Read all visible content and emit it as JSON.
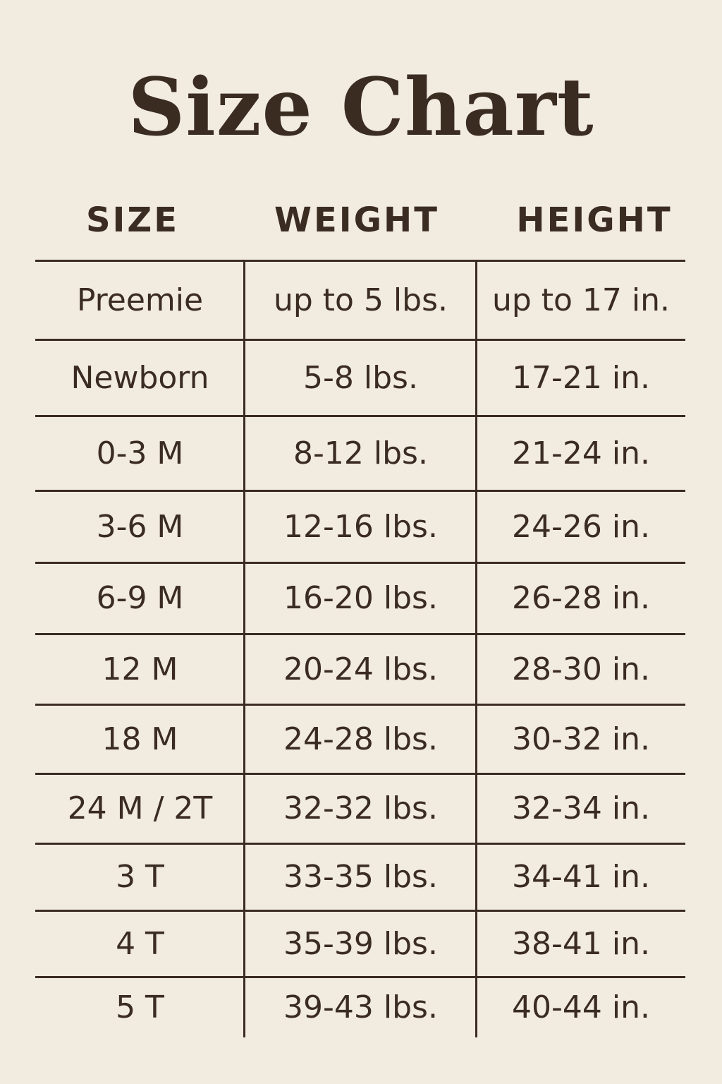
{
  "title": "Size Chart",
  "columns": [
    "SIZE",
    "WEIGHT",
    "HEIGHT"
  ],
  "rows": [
    [
      "Preemie",
      "up to 5 lbs.",
      "up to 17 in."
    ],
    [
      "Newborn",
      "5-8 lbs.",
      "17-21 in."
    ],
    [
      "0-3 M",
      "8-12 lbs.",
      "21-24 in."
    ],
    [
      "3-6 M",
      "12-16 lbs.",
      "24-26 in."
    ],
    [
      "6-9 M",
      "16-20 lbs.",
      "26-28 in."
    ],
    [
      "12 M",
      "20-24 lbs.",
      "28-30 in."
    ],
    [
      "18 M",
      "24-28 lbs.",
      "30-32 in."
    ],
    [
      "24 M / 2T",
      "32-32 lbs.",
      "32-34 in."
    ],
    [
      "3 T",
      "33-35 lbs.",
      "34-41 in."
    ],
    [
      "4 T",
      "35-39 lbs.",
      "38-41 in."
    ],
    [
      "5 T",
      "39-43 lbs.",
      "40-44 in."
    ]
  ],
  "colors": {
    "background": "#f2ebe0",
    "text": "#3b2c22"
  }
}
